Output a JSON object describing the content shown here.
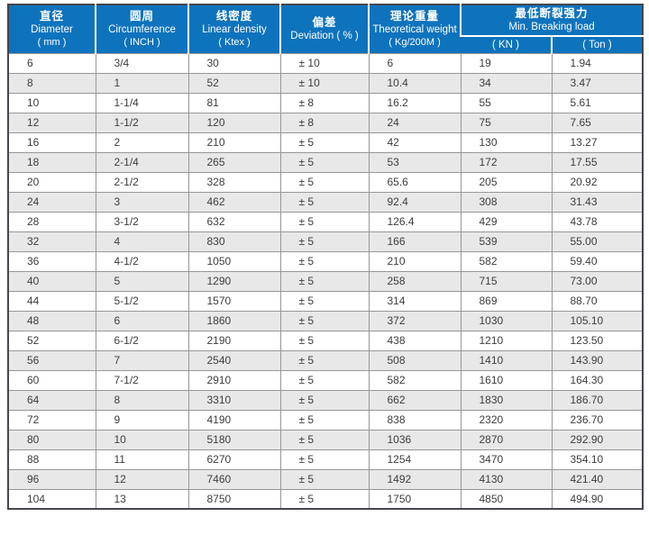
{
  "colors": {
    "header_bg": "#0E73BD",
    "header_fg": "#FFFFFF",
    "row_alt": "#E8E8E8",
    "grid": "#97979B",
    "outer_border": "#45464E"
  },
  "table": {
    "header": {
      "diameter": {
        "zh": "直径",
        "en": "Diameter",
        "unit": "( mm )"
      },
      "circumference": {
        "zh": "圆周",
        "en": "Circumference",
        "unit": "( INCH )"
      },
      "linear_density": {
        "zh": "线密度",
        "en": "Linear density",
        "unit": "( Ktex )"
      },
      "deviation": {
        "zh": "偏差",
        "en": "Deviation ( % )"
      },
      "theoretical_weight": {
        "zh": "理论重量",
        "en": "Theoretical weight",
        "unit": "( Kg/200M )"
      },
      "breaking_load": {
        "zh": "最低断裂强力",
        "en": "Min. Breaking load",
        "kn": "( KN )",
        "ton": "( Ton )"
      }
    },
    "rows": [
      [
        "6",
        "3/4",
        "30",
        "± 10",
        "6",
        "19",
        "1.94"
      ],
      [
        "8",
        "1",
        "52",
        "± 10",
        "10.4",
        "34",
        "3.47"
      ],
      [
        "10",
        "1-1/4",
        "81",
        "± 8",
        "16.2",
        "55",
        "5.61"
      ],
      [
        "12",
        "1-1/2",
        "120",
        "± 8",
        "24",
        "75",
        "7.65"
      ],
      [
        "16",
        "2",
        "210",
        "± 5",
        "42",
        "130",
        "13.27"
      ],
      [
        "18",
        "2-1/4",
        "265",
        "± 5",
        "53",
        "172",
        "17.55"
      ],
      [
        "20",
        "2-1/2",
        "328",
        "± 5",
        "65.6",
        "205",
        "20.92"
      ],
      [
        "24",
        "3",
        "462",
        "± 5",
        "92.4",
        "308",
        "31.43"
      ],
      [
        "28",
        "3-1/2",
        "632",
        "± 5",
        "126.4",
        "429",
        "43.78"
      ],
      [
        "32",
        "4",
        "830",
        "± 5",
        "166",
        "539",
        "55.00"
      ],
      [
        "36",
        "4-1/2",
        "1050",
        "± 5",
        "210",
        "582",
        "59.40"
      ],
      [
        "40",
        "5",
        "1290",
        "± 5",
        "258",
        "715",
        "73.00"
      ],
      [
        "44",
        "5-1/2",
        "1570",
        "± 5",
        "314",
        "869",
        "88.70"
      ],
      [
        "48",
        "6",
        "1860",
        "± 5",
        "372",
        "1030",
        "105.10"
      ],
      [
        "52",
        "6-1/2",
        "2190",
        "± 5",
        "438",
        "1210",
        "123.50"
      ],
      [
        "56",
        "7",
        "2540",
        "± 5",
        "508",
        "1410",
        "143.90"
      ],
      [
        "60",
        "7-1/2",
        "2910",
        "± 5",
        "582",
        "1610",
        "164.30"
      ],
      [
        "64",
        "8",
        "3310",
        "± 5",
        "662",
        "1830",
        "186.70"
      ],
      [
        "72",
        "9",
        "4190",
        "± 5",
        "838",
        "2320",
        "236.70"
      ],
      [
        "80",
        "10",
        "5180",
        "± 5",
        "1036",
        "2870",
        "292.90"
      ],
      [
        "88",
        "11",
        "6270",
        "± 5",
        "1254",
        "3470",
        "354.10"
      ],
      [
        "96",
        "12",
        "7460",
        "± 5",
        "1492",
        "4130",
        "421.40"
      ],
      [
        "104",
        "13",
        "8750",
        "± 5",
        "1750",
        "4850",
        "494.90"
      ]
    ]
  }
}
